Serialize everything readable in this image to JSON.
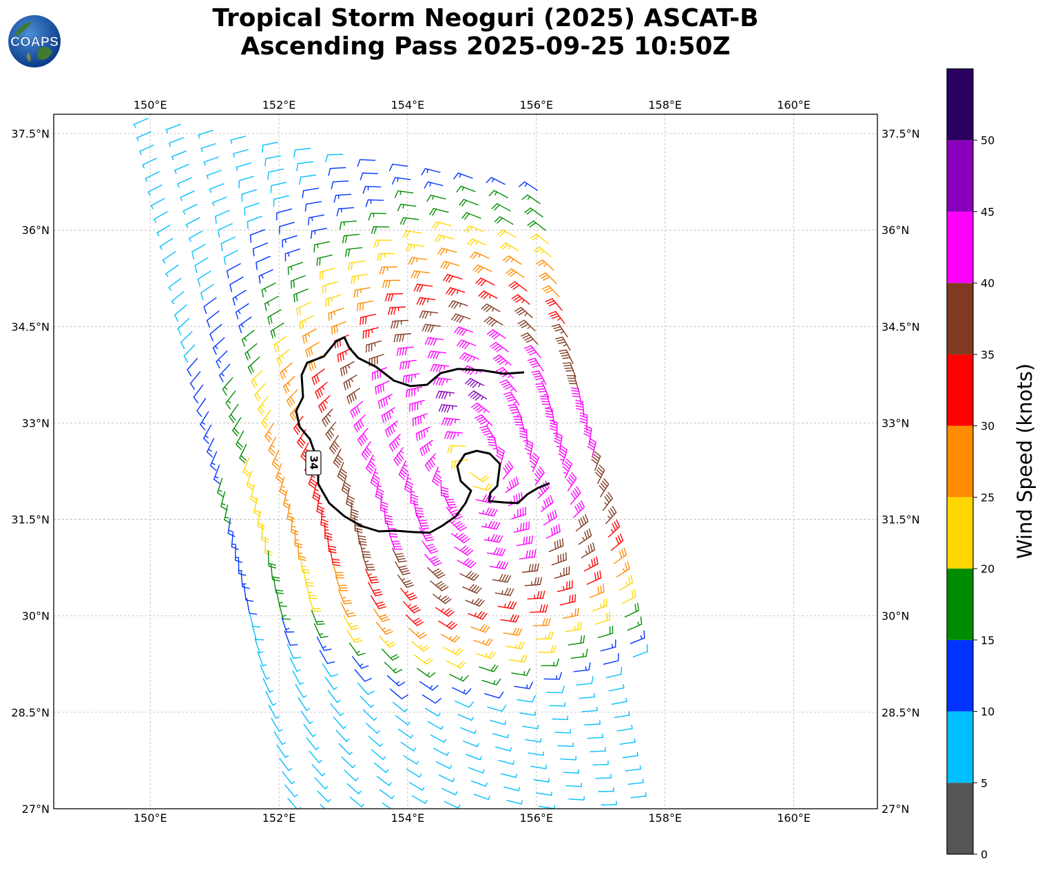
{
  "title": {
    "line1": "Tropical Storm Neoguri (2025) ASCAT-B",
    "line2": "Ascending Pass 2025-09-25 10:50Z"
  },
  "logo": {
    "text": "COAPS"
  },
  "map": {
    "lon_ticks": [
      "150°E",
      "152°E",
      "154°E",
      "156°E",
      "158°E",
      "160°E"
    ],
    "lat_ticks": [
      "37.5°N",
      "36°N",
      "34.5°N",
      "33°N",
      "31.5°N",
      "30°N",
      "28.5°N",
      "27°N"
    ],
    "lon_range": [
      148.5,
      161.3
    ],
    "lat_range": [
      27,
      37.8
    ],
    "storm_center": {
      "lon": 155.0,
      "lat": 32.3
    },
    "contour_label": "34",
    "barb_colors_by_speed": [
      "#555555",
      "#00bfff",
      "#0033ff",
      "#008c00",
      "#ffd700",
      "#ff8c00",
      "#ff0000",
      "#7f3a20",
      "#ff00ff",
      "#8800bb",
      "#2a0060"
    ],
    "gridlines": true
  },
  "colorbar": {
    "label": "Wind Speed (knots)",
    "tick_labels": [
      "0",
      "5",
      "10",
      "15",
      "20",
      "25",
      "30",
      "35",
      "40",
      "45",
      "50"
    ],
    "bins": [
      {
        "from": 0,
        "to": 5,
        "color": "#555555"
      },
      {
        "from": 5,
        "to": 10,
        "color": "#00bfff"
      },
      {
        "from": 10,
        "to": 15,
        "color": "#0033ff"
      },
      {
        "from": 15,
        "to": 20,
        "color": "#008c00"
      },
      {
        "from": 20,
        "to": 25,
        "color": "#ffd700"
      },
      {
        "from": 25,
        "to": 30,
        "color": "#ff8c00"
      },
      {
        "from": 30,
        "to": 35,
        "color": "#ff0000"
      },
      {
        "from": 35,
        "to": 40,
        "color": "#7f3a20"
      },
      {
        "from": 40,
        "to": 45,
        "color": "#ff00ff"
      },
      {
        "from": 45,
        "to": 50,
        "color": "#8800bb"
      },
      {
        "from": 50,
        "to": 55,
        "color": "#2a0060"
      }
    ]
  }
}
